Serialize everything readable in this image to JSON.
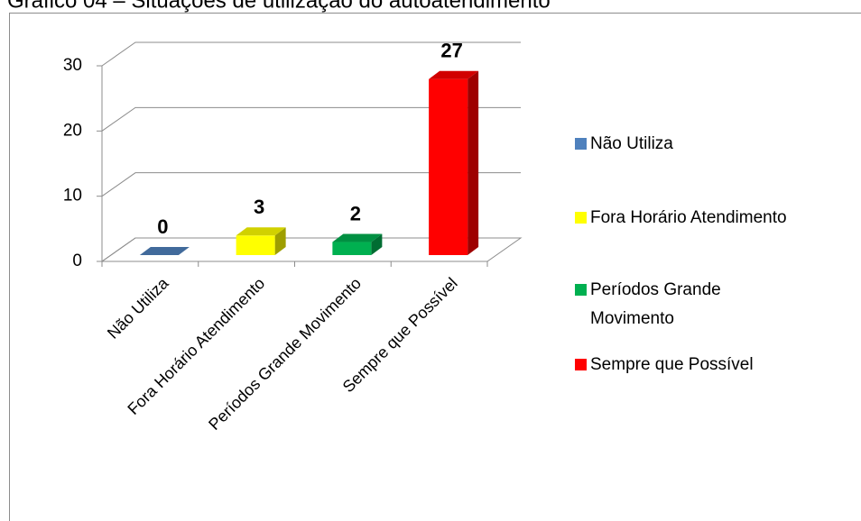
{
  "chart_data": {
    "type": "bar3d",
    "title": "Gráfico 04 – Situações de utilização do autoatendimento",
    "categories": [
      "Não Utiliza",
      "Fora Horário Atendimento",
      "Períodos Grande Movimento",
      "Sempre que Possível"
    ],
    "values": [
      0,
      3,
      2,
      27
    ],
    "colors": [
      "#4f81bd",
      "#ffff00",
      "#00b050",
      "#ff0000"
    ],
    "ylim": [
      0,
      30
    ],
    "yticks": [
      0,
      10,
      20,
      30
    ],
    "grid": true,
    "legend": "right"
  }
}
